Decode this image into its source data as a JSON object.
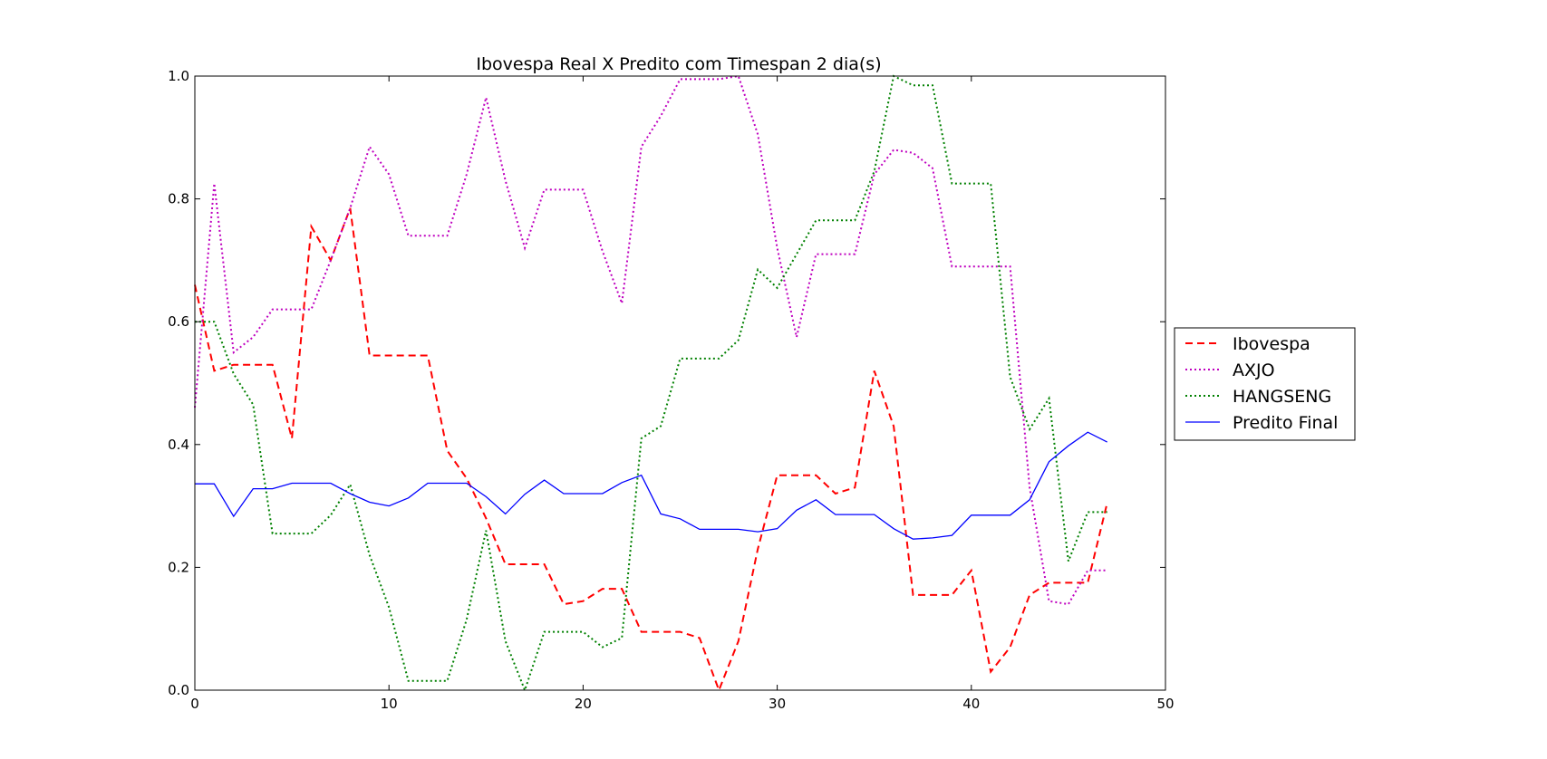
{
  "chart_data": {
    "type": "line",
    "title": "Ibovespa Real X Predito com Timespan 2 dia(s)",
    "xlabel": "",
    "ylabel": "",
    "xlim": [
      0,
      50
    ],
    "ylim": [
      0,
      1
    ],
    "xticks": [
      "0",
      "10",
      "20",
      "30",
      "40",
      "50"
    ],
    "yticks": [
      "0.0",
      "0.2",
      "0.4",
      "0.6",
      "0.8",
      "1.0"
    ],
    "grid": false,
    "legend_position": "right-outside",
    "x": [
      0,
      1,
      2,
      3,
      4,
      5,
      6,
      7,
      8,
      9,
      10,
      11,
      12,
      13,
      14,
      15,
      16,
      17,
      18,
      19,
      20,
      21,
      22,
      23,
      24,
      25,
      26,
      27,
      28,
      29,
      30,
      31,
      32,
      33,
      34,
      35,
      36,
      37,
      38,
      39,
      40,
      41,
      42,
      43,
      44,
      45,
      46,
      47
    ],
    "series": [
      {
        "name": "Ibovespa",
        "color": "#ff0000",
        "style": "dashed",
        "values": [
          0.66,
          0.52,
          0.53,
          0.53,
          0.53,
          0.41,
          0.755,
          0.7,
          0.785,
          0.545,
          0.545,
          0.545,
          0.545,
          0.39,
          0.345,
          0.28,
          0.205,
          0.205,
          0.205,
          0.14,
          0.145,
          0.165,
          0.165,
          0.095,
          0.095,
          0.095,
          0.085,
          0.0,
          0.08,
          0.23,
          0.35,
          0.35,
          0.35,
          0.32,
          0.33,
          0.52,
          0.43,
          0.155,
          0.155,
          0.155,
          0.195,
          0.03,
          0.07,
          0.155,
          0.175,
          0.175,
          0.175,
          0.305
        ]
      },
      {
        "name": "AXJO",
        "color": "#bf00bf",
        "style": "dotted",
        "values": [
          0.46,
          0.825,
          0.55,
          0.575,
          0.62,
          0.62,
          0.62,
          0.7,
          0.785,
          0.885,
          0.84,
          0.74,
          0.74,
          0.74,
          0.84,
          0.965,
          0.83,
          0.72,
          0.815,
          0.815,
          0.815,
          0.715,
          0.63,
          0.885,
          0.935,
          0.995,
          0.995,
          0.995,
          1.0,
          0.905,
          0.72,
          0.575,
          0.71,
          0.71,
          0.71,
          0.84,
          0.88,
          0.875,
          0.85,
          0.69,
          0.69,
          0.69,
          0.69,
          0.33,
          0.145,
          0.14,
          0.195,
          0.195
        ]
      },
      {
        "name": "HANGSENG",
        "color": "#008000",
        "style": "dotted",
        "values": [
          0.6,
          0.6,
          0.515,
          0.465,
          0.255,
          0.255,
          0.255,
          0.285,
          0.335,
          0.22,
          0.135,
          0.015,
          0.015,
          0.015,
          0.115,
          0.26,
          0.08,
          0.0,
          0.095,
          0.095,
          0.095,
          0.07,
          0.085,
          0.41,
          0.43,
          0.54,
          0.54,
          0.54,
          0.57,
          0.685,
          0.655,
          0.71,
          0.765,
          0.765,
          0.765,
          0.845,
          1.0,
          0.985,
          0.985,
          0.825,
          0.825,
          0.825,
          0.51,
          0.425,
          0.475,
          0.21,
          0.29,
          0.29
        ]
      },
      {
        "name": "Predito Final",
        "color": "#0000ff",
        "style": "solid",
        "values": [
          0.336,
          0.336,
          0.283,
          0.328,
          0.328,
          0.337,
          0.337,
          0.337,
          0.32,
          0.306,
          0.3,
          0.313,
          0.337,
          0.337,
          0.337,
          0.315,
          0.287,
          0.319,
          0.342,
          0.32,
          0.32,
          0.32,
          0.338,
          0.35,
          0.287,
          0.279,
          0.262,
          0.262,
          0.262,
          0.258,
          0.263,
          0.293,
          0.31,
          0.286,
          0.286,
          0.286,
          0.263,
          0.246,
          0.248,
          0.252,
          0.285,
          0.285,
          0.285,
          0.31,
          0.372,
          0.398,
          0.42,
          0.404
        ]
      }
    ]
  }
}
